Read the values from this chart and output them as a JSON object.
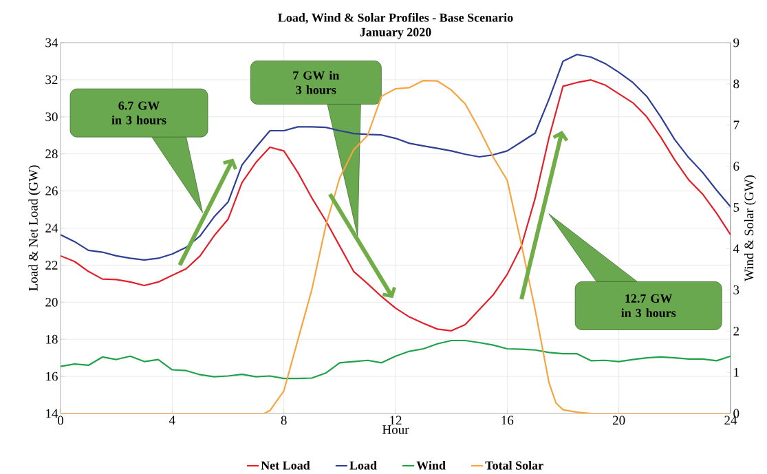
{
  "chart_data": {
    "type": "line",
    "title": "Load, Wind & Solar Profiles - Base Scenario",
    "subtitle": "January 2020",
    "xlabel": "Hour",
    "ylabel": "Load & Net Load (GW)",
    "y2label": "Wind & Solar (GW)",
    "x": [
      0,
      0.5,
      1,
      1.5,
      2,
      2.5,
      3,
      3.5,
      4,
      4.5,
      5,
      5.5,
      6,
      6.5,
      7,
      7.5,
      8,
      8.5,
      9,
      9.5,
      10,
      10.5,
      11,
      11.5,
      12,
      12.5,
      13,
      13.5,
      14,
      14.5,
      15,
      15.5,
      16,
      16.5,
      17,
      17.5,
      18,
      18.5,
      19,
      19.5,
      20,
      20.5,
      21,
      21.5,
      22,
      22.5,
      23,
      23.5,
      24
    ],
    "series": [
      {
        "name": "Net Load",
        "color": "#e3202a",
        "values": [
          22.5,
          22.2,
          21.66,
          21.25,
          21.22,
          21.09,
          20.9,
          21.09,
          21.45,
          21.8,
          22.5,
          23.58,
          24.47,
          26.45,
          27.54,
          28.36,
          28.16,
          27.0,
          25.63,
          24.4,
          23.03,
          21.66,
          21.0,
          20.3,
          19.68,
          19.2,
          18.86,
          18.55,
          18.46,
          18.8,
          19.6,
          20.4,
          21.5,
          23.0,
          25.6,
          28.9,
          31.65,
          31.85,
          31.99,
          31.72,
          31.24,
          30.76,
          30.0,
          28.9,
          27.68,
          26.6,
          25.83,
          24.8,
          23.64
        ]
      },
      {
        "name": "Load",
        "color": "#2e3f94",
        "values": [
          23.64,
          23.27,
          22.8,
          22.7,
          22.5,
          22.37,
          22.28,
          22.37,
          22.6,
          22.96,
          23.58,
          24.6,
          25.4,
          27.4,
          28.36,
          29.25,
          29.25,
          29.46,
          29.46,
          29.43,
          29.25,
          29.1,
          29.05,
          29.02,
          28.84,
          28.57,
          28.43,
          28.3,
          28.16,
          27.98,
          27.84,
          27.95,
          28.16,
          28.64,
          29.12,
          30.96,
          33.0,
          33.36,
          33.22,
          32.88,
          32.4,
          31.85,
          31.1,
          30.0,
          28.77,
          27.8,
          27.0,
          26.04,
          25.15
        ]
      },
      {
        "name": "Wind",
        "color": "#1fa34a",
        "axis": "y2",
        "values": [
          1.14,
          1.2,
          1.17,
          1.37,
          1.31,
          1.39,
          1.26,
          1.31,
          1.06,
          1.04,
          0.94,
          0.89,
          0.91,
          0.95,
          0.89,
          0.91,
          0.85,
          0.85,
          0.86,
          0.98,
          1.23,
          1.26,
          1.29,
          1.23,
          1.39,
          1.51,
          1.57,
          1.69,
          1.77,
          1.77,
          1.72,
          1.66,
          1.57,
          1.56,
          1.54,
          1.48,
          1.45,
          1.45,
          1.28,
          1.29,
          1.26,
          1.31,
          1.35,
          1.37,
          1.35,
          1.32,
          1.32,
          1.28,
          1.39
        ]
      },
      {
        "name": "Total Solar",
        "color": "#f7a540",
        "axis": "y2",
        "x": [
          0,
          7.3,
          7.5,
          8,
          8.5,
          9,
          9.5,
          10,
          10.5,
          11,
          11.5,
          12,
          12.5,
          13,
          13.5,
          14,
          14.5,
          15,
          15.5,
          16,
          16.5,
          17,
          17.5,
          17.75,
          18,
          18.5,
          19,
          24
        ],
        "values": [
          0,
          0,
          0.07,
          0.55,
          1.78,
          3.0,
          4.55,
          5.72,
          6.4,
          6.75,
          7.7,
          7.88,
          7.91,
          8.08,
          8.07,
          7.85,
          7.51,
          6.9,
          6.22,
          5.66,
          4.13,
          2.52,
          0.74,
          0.25,
          0.09,
          0.03,
          0,
          0
        ]
      }
    ],
    "xlim": [
      0,
      24
    ],
    "xticks": [
      0,
      4,
      8,
      12,
      16,
      20,
      24
    ],
    "ylim": [
      14,
      34
    ],
    "yticks": [
      14,
      16,
      18,
      20,
      22,
      24,
      26,
      28,
      30,
      32,
      34
    ],
    "y2lim": [
      0,
      9
    ],
    "y2ticks": [
      0,
      1,
      2,
      3,
      4,
      5,
      6,
      7,
      8,
      9
    ],
    "annotations": [
      "6.7 GW in 3 hours",
      "7 GW in 3 hours",
      "12.7 GW in 3 hours"
    ],
    "grid": true,
    "legend": "bottom"
  }
}
